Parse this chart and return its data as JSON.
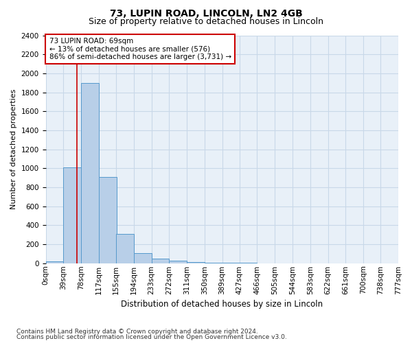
{
  "title": "73, LUPIN ROAD, LINCOLN, LN2 4GB",
  "subtitle": "Size of property relative to detached houses in Lincoln",
  "xlabel": "Distribution of detached houses by size in Lincoln",
  "ylabel": "Number of detached properties",
  "bin_edges": [
    0,
    39,
    78,
    117,
    155,
    194,
    233,
    272,
    311,
    350,
    389,
    427,
    466,
    505,
    544,
    583,
    622,
    661,
    700,
    738,
    777
  ],
  "bin_labels": [
    "0sqm",
    "39sqm",
    "78sqm",
    "117sqm",
    "155sqm",
    "194sqm",
    "233sqm",
    "272sqm",
    "311sqm",
    "350sqm",
    "389sqm",
    "427sqm",
    "466sqm",
    "505sqm",
    "544sqm",
    "583sqm",
    "622sqm",
    "661sqm",
    "700sqm",
    "738sqm",
    "777sqm"
  ],
  "bar_heights": [
    20,
    1010,
    1900,
    910,
    310,
    110,
    50,
    25,
    15,
    5,
    3,
    2,
    1,
    1,
    0,
    0,
    0,
    0,
    0,
    0
  ],
  "bar_color": "#b8cfe8",
  "bar_edge_color": "#5599cc",
  "grid_color": "#c8d8e8",
  "bg_color": "#e8f0f8",
  "property_line_x": 69,
  "property_line_color": "#cc0000",
  "annotation_text": "73 LUPIN ROAD: 69sqm\n← 13% of detached houses are smaller (576)\n86% of semi-detached houses are larger (3,731) →",
  "annotation_box_facecolor": "#ffffff",
  "annotation_box_edgecolor": "#cc0000",
  "ylim": [
    0,
    2400
  ],
  "yticks": [
    0,
    200,
    400,
    600,
    800,
    1000,
    1200,
    1400,
    1600,
    1800,
    2000,
    2200,
    2400
  ],
  "footer1": "Contains HM Land Registry data © Crown copyright and database right 2024.",
  "footer2": "Contains public sector information licensed under the Open Government Licence v3.0.",
  "title_fontsize": 10,
  "subtitle_fontsize": 9,
  "axis_label_fontsize": 8,
  "tick_fontsize": 7.5,
  "footer_fontsize": 6.5
}
